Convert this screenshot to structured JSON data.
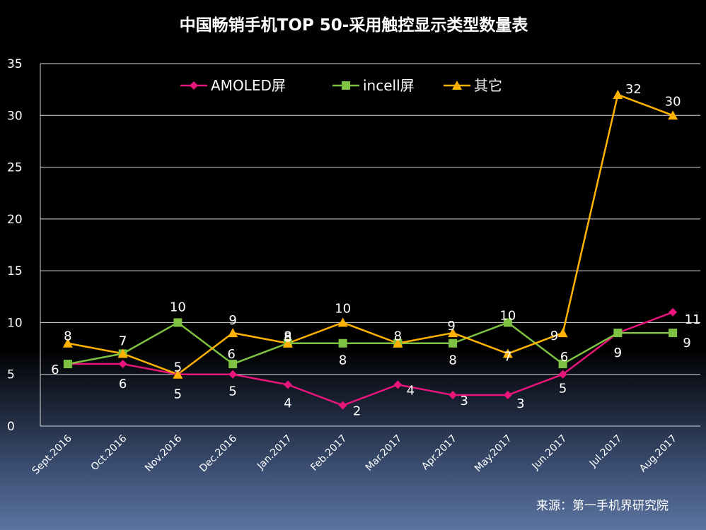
{
  "chart_data": {
    "type": "line",
    "title": "中国畅销手机TOP 50-采用触控显示类型数量表",
    "categories": [
      "Sept.2016",
      "Oct.2016",
      "Nov.2016",
      "Dec.2016",
      "Jan.2017",
      "Feb.2017",
      "Mar.2017",
      "Apr.2017",
      "May.2017",
      "Jun.2017",
      "Jul.2017",
      "Aug.2017"
    ],
    "ylim": [
      0,
      35
    ],
    "yticks": [
      0,
      5,
      10,
      15,
      20,
      25,
      30,
      35
    ],
    "grid": true,
    "legend_position": "top",
    "series": [
      {
        "name": "AMOLED屏",
        "color": "#e8157a",
        "marker": "diamond",
        "values": [
          6,
          6,
          5,
          5,
          4,
          2,
          4,
          3,
          3,
          5,
          9,
          11
        ]
      },
      {
        "name": "incell屏",
        "color": "#7dc242",
        "marker": "square",
        "values": [
          6,
          7,
          10,
          6,
          8,
          8,
          8,
          8,
          10,
          6,
          9,
          9
        ]
      },
      {
        "name": "其它",
        "color": "#ffb300",
        "marker": "triangle",
        "values": [
          8,
          7,
          5,
          9,
          8,
          10,
          8,
          9,
          7,
          9,
          32,
          30
        ]
      }
    ],
    "source": "来源：第一手机界研究院"
  }
}
